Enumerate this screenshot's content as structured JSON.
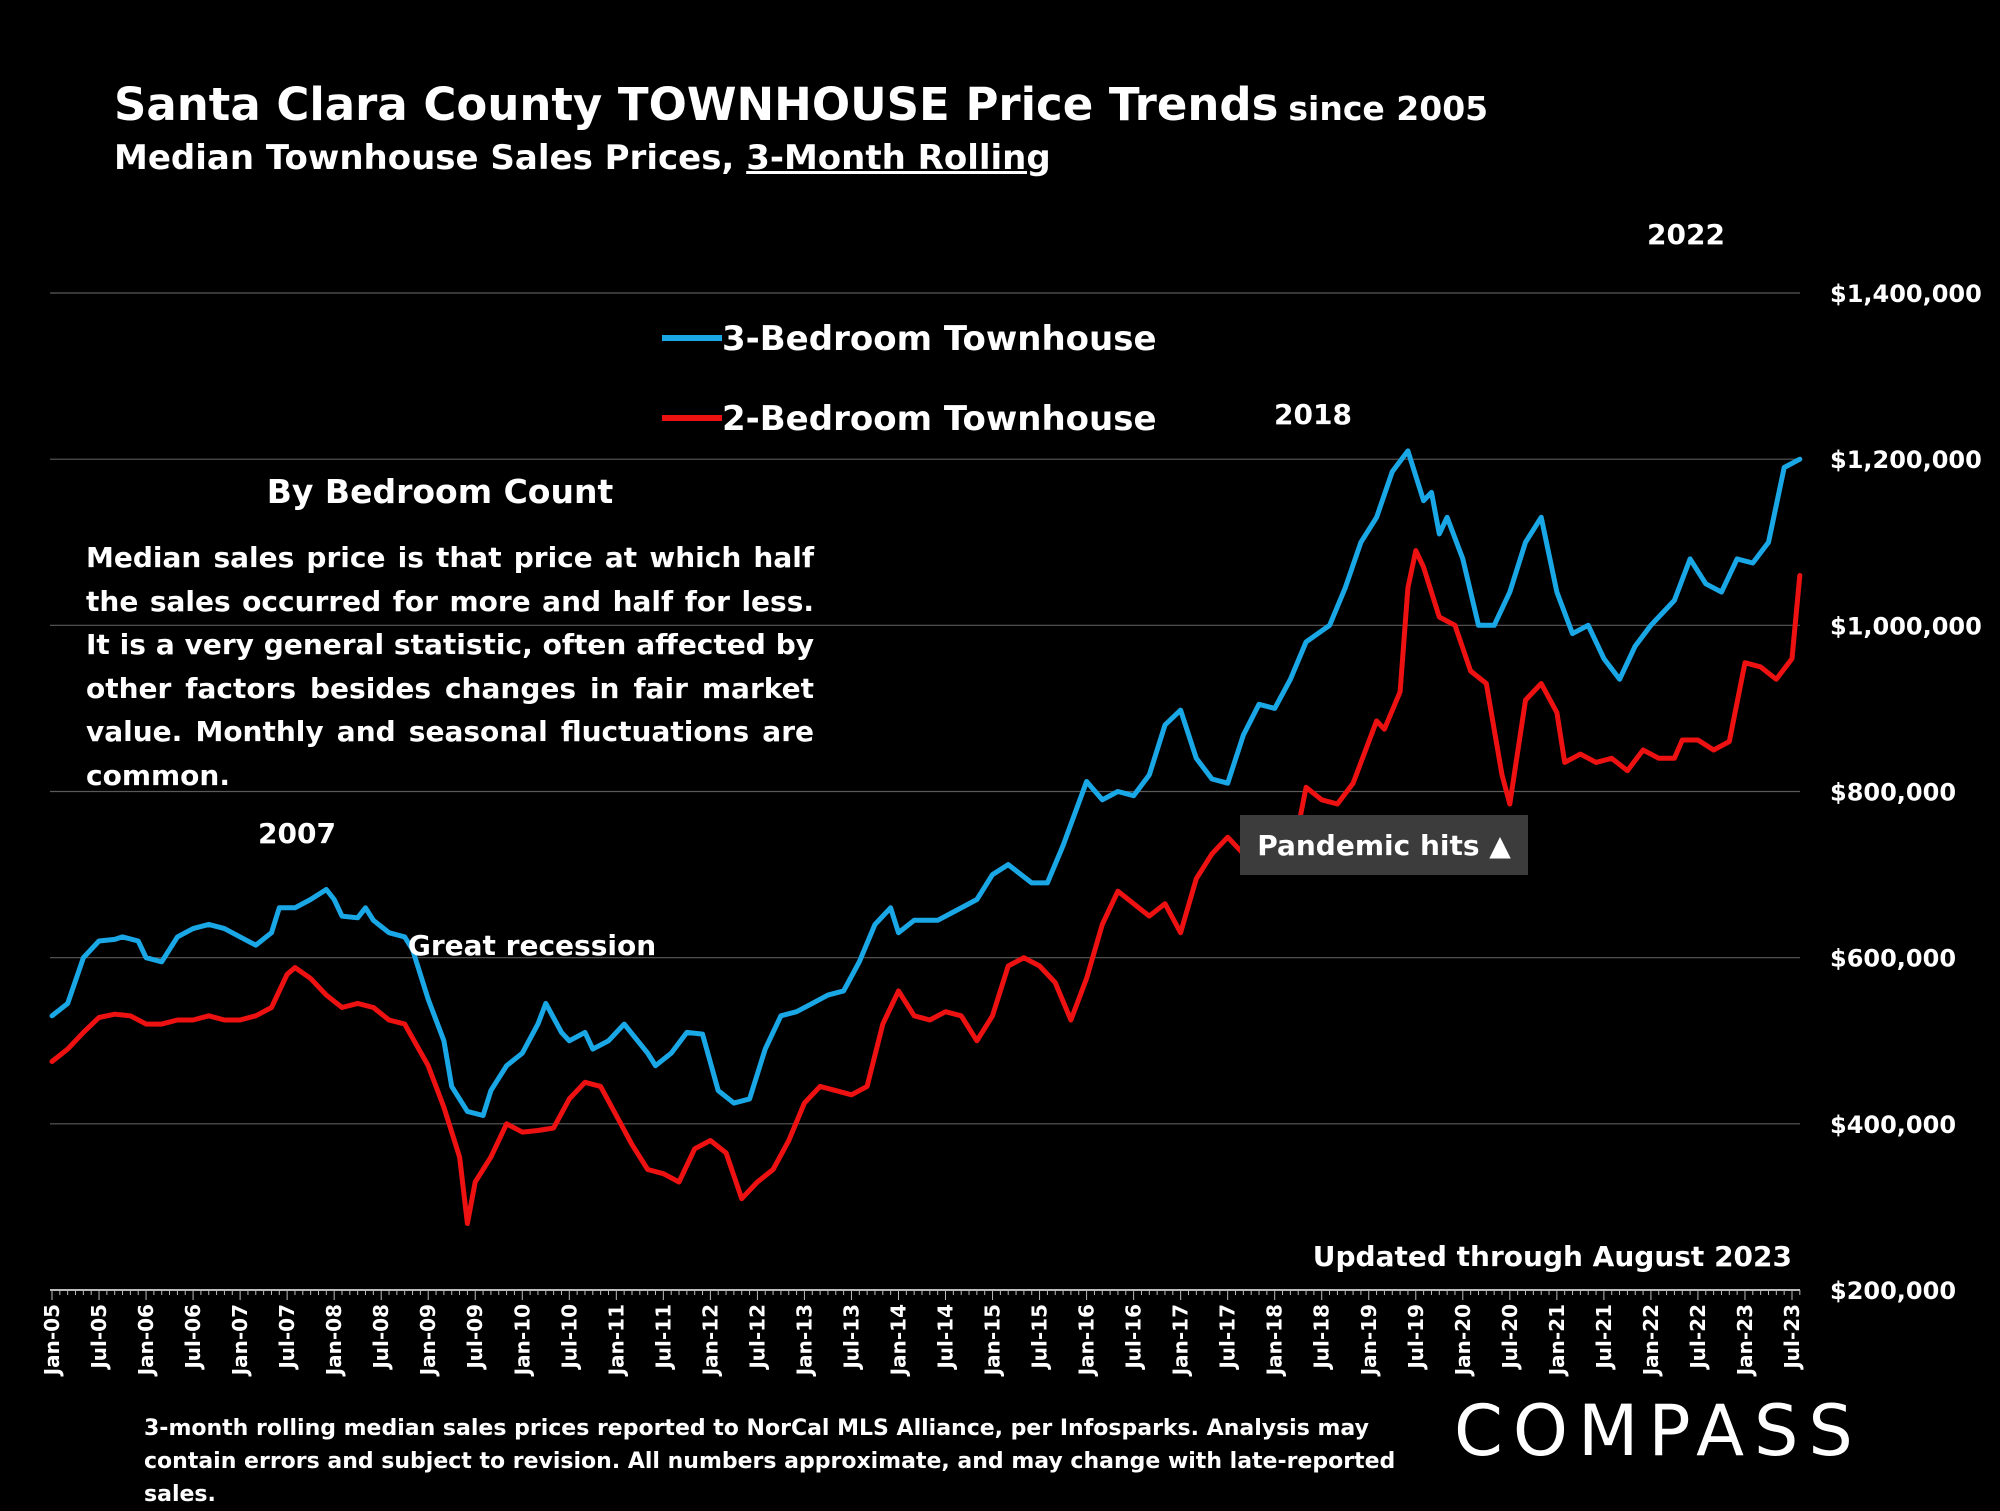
{
  "title": {
    "main": "Santa Clara County TOWNHOUSE Price Trends",
    "suffix": "since 2005",
    "subtitle_prefix": "Median Townhouse Sales Prices, ",
    "subtitle_underlined": "3-Month Rolling"
  },
  "infobox": {
    "title": "By Bedroom Count",
    "body": "Median sales price is that price at which half the sales occurred for more and half for less. It is a very general statistic, often affected by other factors besides changes in fair market value. Monthly and seasonal fluctuations are common."
  },
  "footnote": "3-month rolling median sales prices reported to NorCal MLS Alliance, per Infosparks.  Analysis may contain errors and subject to revision. All numbers approximate, and may change with late-reported sales.",
  "logo": "COMPASS",
  "colors": {
    "background": "#000000",
    "series_3br": "#1aa7e6",
    "series_2br": "#ee1111",
    "grid": "#5a5a5a"
  },
  "chart_data": {
    "type": "line",
    "title": "Santa Clara County TOWNHOUSE Price Trends since 2005",
    "subtitle": "Median Townhouse Sales Prices, 3-Month Rolling",
    "xlabel": "",
    "ylabel": "",
    "x_range": [
      "Jan-05",
      "Aug-23"
    ],
    "ylim": [
      200000,
      1400000
    ],
    "grid": true,
    "legend": "upper-left",
    "y_ticks": [
      "$200,000",
      "$400,000",
      "$600,000",
      "$800,000",
      "$1,000,000",
      "$1,200,000",
      "$1,400,000"
    ],
    "x_ticks": [
      "Jan-05",
      "Jul-05",
      "Jan-06",
      "Jul-06",
      "Jan-07",
      "Jul-07",
      "Jan-08",
      "Jul-08",
      "Jan-09",
      "Jul-09",
      "Jan-10",
      "Jul-10",
      "Jan-11",
      "Jul-11",
      "Jan-12",
      "Jul-12",
      "Jan-13",
      "Jul-13",
      "Jan-14",
      "Jul-14",
      "Jan-15",
      "Jul-15",
      "Jan-16",
      "Jul-16",
      "Jan-17",
      "Jul-17",
      "Jan-18",
      "Jul-18",
      "Jan-19",
      "Jul-19",
      "Jan-20",
      "Jul-20",
      "Jan-21",
      "Jul-21",
      "Jan-22",
      "Jul-22",
      "Jan-23",
      "Jul-23"
    ],
    "annotations": [
      {
        "label": "2007",
        "date": "2007-06"
      },
      {
        "label": "Great recession",
        "date": "2009-10"
      },
      {
        "label": "2018",
        "date": "2018-05"
      },
      {
        "label": "2022",
        "date": "2022-05"
      },
      {
        "label": "Pandemic hits  ▲",
        "date": "2020-03",
        "boxed": true
      },
      {
        "label": "Updated through August 2023",
        "date": "2023-08"
      }
    ],
    "series": [
      {
        "name": "3-Bedroom Townhouse",
        "color": "#1aa7e6",
        "points": [
          [
            "2005-01",
            530000
          ],
          [
            "2005-03",
            545000
          ],
          [
            "2005-05",
            600000
          ],
          [
            "2005-07",
            620000
          ],
          [
            "2005-09",
            622000
          ],
          [
            "2005-10",
            625000
          ],
          [
            "2005-12",
            620000
          ],
          [
            "2006-01",
            600000
          ],
          [
            "2006-03",
            595000
          ],
          [
            "2006-05",
            625000
          ],
          [
            "2006-07",
            635000
          ],
          [
            "2006-09",
            640000
          ],
          [
            "2006-11",
            635000
          ],
          [
            "2007-01",
            625000
          ],
          [
            "2007-03",
            615000
          ],
          [
            "2007-05",
            630000
          ],
          [
            "2007-06",
            660000
          ],
          [
            "2007-08",
            660000
          ],
          [
            "2007-10",
            670000
          ],
          [
            "2007-12",
            682000
          ],
          [
            "2008-01",
            670000
          ],
          [
            "2008-02",
            650000
          ],
          [
            "2008-04",
            648000
          ],
          [
            "2008-05",
            660000
          ],
          [
            "2008-06",
            645000
          ],
          [
            "2008-08",
            630000
          ],
          [
            "2008-10",
            625000
          ],
          [
            "2008-11",
            610000
          ],
          [
            "2009-01",
            550000
          ],
          [
            "2009-03",
            500000
          ],
          [
            "2009-04",
            445000
          ],
          [
            "2009-06",
            415000
          ],
          [
            "2009-08",
            410000
          ],
          [
            "2009-09",
            440000
          ],
          [
            "2009-11",
            470000
          ],
          [
            "2010-01",
            485000
          ],
          [
            "2010-03",
            520000
          ],
          [
            "2010-04",
            545000
          ],
          [
            "2010-06",
            510000
          ],
          [
            "2010-07",
            500000
          ],
          [
            "2010-09",
            510000
          ],
          [
            "2010-10",
            490000
          ],
          [
            "2010-12",
            500000
          ],
          [
            "2011-02",
            520000
          ],
          [
            "2011-05",
            485000
          ],
          [
            "2011-06",
            470000
          ],
          [
            "2011-08",
            485000
          ],
          [
            "2011-10",
            510000
          ],
          [
            "2011-12",
            508000
          ],
          [
            "2012-02",
            440000
          ],
          [
            "2012-04",
            425000
          ],
          [
            "2012-06",
            430000
          ],
          [
            "2012-08",
            490000
          ],
          [
            "2012-10",
            530000
          ],
          [
            "2012-12",
            535000
          ],
          [
            "2013-02",
            545000
          ],
          [
            "2013-04",
            555000
          ],
          [
            "2013-06",
            560000
          ],
          [
            "2013-08",
            595000
          ],
          [
            "2013-10",
            640000
          ],
          [
            "2013-12",
            660000
          ],
          [
            "2014-01",
            630000
          ],
          [
            "2014-03",
            645000
          ],
          [
            "2014-06",
            645000
          ],
          [
            "2014-08",
            655000
          ],
          [
            "2014-11",
            670000
          ],
          [
            "2015-01",
            700000
          ],
          [
            "2015-03",
            712000
          ],
          [
            "2015-06",
            690000
          ],
          [
            "2015-08",
            690000
          ],
          [
            "2015-10",
            735000
          ],
          [
            "2016-01",
            812000
          ],
          [
            "2016-03",
            790000
          ],
          [
            "2016-05",
            800000
          ],
          [
            "2016-07",
            795000
          ],
          [
            "2016-09",
            820000
          ],
          [
            "2016-11",
            880000
          ],
          [
            "2017-01",
            898000
          ],
          [
            "2017-03",
            840000
          ],
          [
            "2017-05",
            815000
          ],
          [
            "2017-07",
            810000
          ],
          [
            "2017-09",
            868000
          ],
          [
            "2017-11",
            905000
          ],
          [
            "2018-01",
            900000
          ],
          [
            "2018-03",
            935000
          ],
          [
            "2018-05",
            980000
          ],
          [
            "2018-08",
            1000000
          ],
          [
            "2018-10",
            1045000
          ],
          [
            "2018-12",
            1100000
          ],
          [
            "2019-02",
            1130000
          ],
          [
            "2019-04",
            1185000
          ],
          [
            "2019-06",
            1210000
          ],
          [
            "2019-08",
            1150000
          ],
          [
            "2019-09",
            1160000
          ],
          [
            "2019-10",
            1110000
          ],
          [
            "2019-11",
            1130000
          ],
          [
            "2020-01",
            1080000
          ],
          [
            "2020-03",
            1000000
          ],
          [
            "2020-05",
            1000000
          ],
          [
            "2020-07",
            1040000
          ],
          [
            "2020-09",
            1100000
          ],
          [
            "2020-11",
            1130000
          ],
          [
            "2021-01",
            1040000
          ],
          [
            "2021-03",
            990000
          ],
          [
            "2021-05",
            1000000
          ],
          [
            "2021-07",
            960000
          ],
          [
            "2021-09",
            935000
          ],
          [
            "2021-11",
            975000
          ],
          [
            "2022-01",
            1000000
          ],
          [
            "2022-04",
            1030000
          ],
          [
            "2022-06",
            1080000
          ],
          [
            "2022-08",
            1050000
          ],
          [
            "2022-10",
            1040000
          ],
          [
            "2022-12",
            1080000
          ],
          [
            "2023-02",
            1075000
          ],
          [
            "2023-04",
            1100000
          ],
          [
            "2023-06",
            1190000
          ],
          [
            "2023-08",
            1200000
          ]
        ]
      },
      {
        "name": "2-Bedroom Townhouse",
        "color": "#ee1111",
        "points": [
          [
            "2005-01",
            475000
          ],
          [
            "2005-03",
            490000
          ],
          [
            "2005-05",
            510000
          ],
          [
            "2005-07",
            528000
          ],
          [
            "2005-09",
            532000
          ],
          [
            "2005-11",
            530000
          ],
          [
            "2006-01",
            520000
          ],
          [
            "2006-03",
            520000
          ],
          [
            "2006-05",
            525000
          ],
          [
            "2006-07",
            525000
          ],
          [
            "2006-09",
            530000
          ],
          [
            "2006-11",
            525000
          ],
          [
            "2007-01",
            525000
          ],
          [
            "2007-03",
            530000
          ],
          [
            "2007-05",
            540000
          ],
          [
            "2007-07",
            580000
          ],
          [
            "2007-08",
            588000
          ],
          [
            "2007-10",
            575000
          ],
          [
            "2007-12",
            555000
          ],
          [
            "2008-02",
            540000
          ],
          [
            "2008-04",
            545000
          ],
          [
            "2008-06",
            540000
          ],
          [
            "2008-08",
            525000
          ],
          [
            "2008-10",
            520000
          ],
          [
            "2009-01",
            470000
          ],
          [
            "2009-03",
            420000
          ],
          [
            "2009-05",
            360000
          ],
          [
            "2009-06",
            280000
          ],
          [
            "2009-07",
            330000
          ],
          [
            "2009-09",
            360000
          ],
          [
            "2009-11",
            400000
          ],
          [
            "2010-01",
            390000
          ],
          [
            "2010-03",
            392000
          ],
          [
            "2010-05",
            395000
          ],
          [
            "2010-07",
            430000
          ],
          [
            "2010-09",
            450000
          ],
          [
            "2010-11",
            445000
          ],
          [
            "2011-01",
            410000
          ],
          [
            "2011-03",
            375000
          ],
          [
            "2011-05",
            345000
          ],
          [
            "2011-07",
            340000
          ],
          [
            "2011-09",
            330000
          ],
          [
            "2011-11",
            370000
          ],
          [
            "2012-01",
            380000
          ],
          [
            "2012-03",
            365000
          ],
          [
            "2012-05",
            310000
          ],
          [
            "2012-07",
            330000
          ],
          [
            "2012-09",
            345000
          ],
          [
            "2012-11",
            380000
          ],
          [
            "2013-01",
            425000
          ],
          [
            "2013-03",
            445000
          ],
          [
            "2013-05",
            440000
          ],
          [
            "2013-07",
            435000
          ],
          [
            "2013-09",
            445000
          ],
          [
            "2013-11",
            520000
          ],
          [
            "2014-01",
            560000
          ],
          [
            "2014-03",
            530000
          ],
          [
            "2014-05",
            525000
          ],
          [
            "2014-07",
            535000
          ],
          [
            "2014-09",
            530000
          ],
          [
            "2014-11",
            500000
          ],
          [
            "2015-01",
            530000
          ],
          [
            "2015-03",
            590000
          ],
          [
            "2015-05",
            600000
          ],
          [
            "2015-07",
            590000
          ],
          [
            "2015-09",
            570000
          ],
          [
            "2015-11",
            525000
          ],
          [
            "2016-01",
            575000
          ],
          [
            "2016-03",
            640000
          ],
          [
            "2016-05",
            680000
          ],
          [
            "2016-07",
            665000
          ],
          [
            "2016-09",
            650000
          ],
          [
            "2016-11",
            665000
          ],
          [
            "2017-01",
            630000
          ],
          [
            "2017-03",
            695000
          ],
          [
            "2017-05",
            725000
          ],
          [
            "2017-07",
            745000
          ],
          [
            "2017-09",
            725000
          ],
          [
            "2017-11",
            720000
          ],
          [
            "2018-01",
            710000
          ],
          [
            "2018-03",
            710000
          ],
          [
            "2018-05",
            805000
          ],
          [
            "2018-07",
            790000
          ],
          [
            "2018-09",
            785000
          ],
          [
            "2018-11",
            810000
          ],
          [
            "2019-01",
            860000
          ],
          [
            "2019-02",
            885000
          ],
          [
            "2019-03",
            875000
          ],
          [
            "2019-05",
            920000
          ],
          [
            "2019-06",
            1045000
          ],
          [
            "2019-07",
            1090000
          ],
          [
            "2019-08",
            1070000
          ],
          [
            "2019-10",
            1010000
          ],
          [
            "2019-12",
            1000000
          ],
          [
            "2020-02",
            945000
          ],
          [
            "2020-04",
            930000
          ],
          [
            "2020-06",
            820000
          ],
          [
            "2020-07",
            785000
          ],
          [
            "2020-09",
            910000
          ],
          [
            "2020-11",
            930000
          ],
          [
            "2021-01",
            895000
          ],
          [
            "2021-02",
            835000
          ],
          [
            "2021-04",
            845000
          ],
          [
            "2021-06",
            835000
          ],
          [
            "2021-08",
            840000
          ],
          [
            "2021-10",
            825000
          ],
          [
            "2021-12",
            850000
          ],
          [
            "2022-02",
            840000
          ],
          [
            "2022-04",
            840000
          ],
          [
            "2022-05",
            862000
          ],
          [
            "2022-07",
            862000
          ],
          [
            "2022-09",
            850000
          ],
          [
            "2022-11",
            860000
          ],
          [
            "2023-01",
            955000
          ],
          [
            "2023-03",
            950000
          ],
          [
            "2023-05",
            935000
          ],
          [
            "2023-07",
            960000
          ],
          [
            "2023-08",
            1060000
          ]
        ]
      }
    ]
  }
}
